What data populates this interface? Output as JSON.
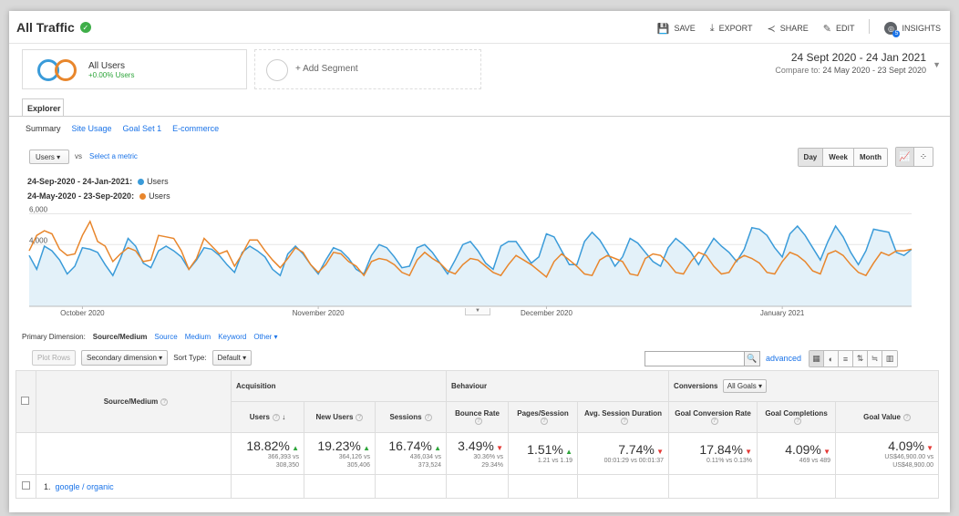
{
  "header": {
    "title": "All Traffic",
    "toolbar": {
      "save": "SAVE",
      "export": "EXPORT",
      "share": "SHARE",
      "edit": "EDIT",
      "insights": "INSIGHTS",
      "insights_badge": "5"
    }
  },
  "segments": {
    "primary": {
      "name": "All Users",
      "sub": "+0.00% Users"
    },
    "add": "+ Add Segment"
  },
  "date_range": {
    "main": "24 Sept 2020 - 24 Jan 2021",
    "compare_label": "Compare to:",
    "compare_value": "24 May 2020 - 23 Sept 2020"
  },
  "explorer": {
    "tab": "Explorer",
    "subtabs": [
      "Summary",
      "Site Usage",
      "Goal Set 1",
      "E-commerce"
    ]
  },
  "chart_controls": {
    "metric": "Users",
    "vs": "vs",
    "select_metric": "Select a metric",
    "granularity": [
      "Day",
      "Week",
      "Month"
    ],
    "active_granularity": "Day"
  },
  "legend": {
    "range1": "24-Sep-2020 - 24-Jan-2021:",
    "range2": "24-May-2020 - 23-Sep-2020:",
    "series": "Users"
  },
  "colors": {
    "current": "#3a9bd9",
    "previous": "#e8862c",
    "area": "#e3f1f9",
    "link": "#1a73e8",
    "up": "#2ea53b",
    "down": "#e53935"
  },
  "chart_data": {
    "type": "line",
    "y_ticks": [
      "6,000",
      "4,000",
      "2,000"
    ],
    "ylim": [
      0,
      6500
    ],
    "x_labels": [
      "October 2020",
      "November 2020",
      "December 2020",
      "January 2021"
    ],
    "x_label_index": [
      7,
      38,
      68,
      99
    ],
    "series": [
      {
        "name": "Users",
        "values": [
          3300,
          2400,
          3900,
          3600,
          3000,
          2100,
          2600,
          3800,
          3700,
          3500,
          2700,
          2000,
          3100,
          4400,
          3900,
          2800,
          2500,
          3600,
          3900,
          3600,
          3200,
          2400,
          3000,
          3800,
          3700,
          3300,
          2700,
          2200,
          3500,
          3900,
          3600,
          3200,
          2400,
          2000,
          3400,
          3900,
          3400,
          2700,
          2100,
          3000,
          3800,
          3600,
          3100,
          2400,
          2100,
          3300,
          4000,
          3800,
          3200,
          2500,
          2600,
          3800,
          4000,
          3500,
          2800,
          2100,
          3000,
          4000,
          4200,
          3600,
          2800,
          2400,
          3900,
          4200,
          4200,
          3500,
          2800,
          3200,
          4700,
          4500,
          3600,
          2700,
          2700,
          4200,
          4800,
          4300,
          3500,
          2600,
          3200,
          4400,
          4100,
          3500,
          2900,
          2600,
          3800,
          4400,
          4000,
          3500,
          2700,
          3600,
          4400,
          3900,
          3500,
          2900,
          3700,
          5100,
          5000,
          4600,
          3800,
          3200,
          4700,
          5200,
          4600,
          3800,
          3000,
          4200,
          5200,
          4500,
          3500,
          2700,
          3600,
          5000,
          4900,
          4800,
          3500,
          3300,
          3700
        ]
      },
      {
        "name": "Users",
        "values": [
          3600,
          4600,
          4900,
          4700,
          3700,
          3300,
          3400,
          4600,
          5500,
          4200,
          3900,
          2900,
          3400,
          3800,
          3600,
          2900,
          3000,
          4600,
          4500,
          4400,
          3600,
          2400,
          3100,
          4400,
          3900,
          3400,
          3600,
          2600,
          3400,
          4300,
          4300,
          3600,
          3000,
          2500,
          3100,
          3800,
          3500,
          2700,
          2200,
          2700,
          3500,
          3400,
          2900,
          2600,
          2000,
          2900,
          3100,
          3000,
          2700,
          2200,
          2000,
          3000,
          3500,
          3100,
          2800,
          2300,
          2100,
          2700,
          3100,
          3000,
          2600,
          2200,
          2000,
          2700,
          3300,
          3000,
          2700,
          2300,
          1900,
          2900,
          3400,
          3000,
          2600,
          2100,
          2000,
          3000,
          3300,
          3100,
          2900,
          2100,
          2000,
          3100,
          3400,
          3300,
          2800,
          2200,
          2100,
          2900,
          3500,
          3300,
          2600,
          2100,
          2200,
          3000,
          3300,
          3100,
          2800,
          2200,
          2100,
          2900,
          3500,
          3300,
          2900,
          2300,
          2100,
          3400,
          3600,
          3300,
          2700,
          2200,
          2000,
          2800,
          3500,
          3300,
          3600,
          3600,
          3700
        ]
      }
    ]
  },
  "primary_dimension": {
    "label": "Primary Dimension:",
    "current": "Source/Medium",
    "options": [
      "Source",
      "Medium",
      "Keyword"
    ],
    "other": "Other"
  },
  "table_controls": {
    "plot_rows": "Plot Rows",
    "secondary": "Secondary dimension",
    "sort_label": "Sort Type:",
    "sort_value": "Default",
    "advanced": "advanced"
  },
  "table": {
    "dim_header": "Source/Medium",
    "groups": {
      "acquisition": "Acquisition",
      "behaviour": "Behaviour",
      "conversions": "Conversions",
      "goals_select": "All Goals"
    },
    "columns": [
      "Users",
      "New Users",
      "Sessions",
      "Bounce Rate",
      "Pages/Session",
      "Avg. Session Duration",
      "Goal Conversion Rate",
      "Goal Completions",
      "Goal Value"
    ],
    "totals": [
      {
        "pct": "18.82%",
        "dir": "up",
        "line1": "366,393 vs",
        "line2": "308,350"
      },
      {
        "pct": "19.23%",
        "dir": "up",
        "line1": "364,126 vs",
        "line2": "305,406"
      },
      {
        "pct": "16.74%",
        "dir": "up",
        "line1": "436,034 vs",
        "line2": "373,524"
      },
      {
        "pct": "3.49%",
        "dir": "down",
        "line1": "30.36% vs",
        "line2": "29.34%"
      },
      {
        "pct": "1.51%",
        "dir": "up",
        "line1": "1.21 vs 1.19",
        "line2": ""
      },
      {
        "pct": "7.74%",
        "dir": "down",
        "line1": "00:01:29 vs 00:01:37",
        "line2": ""
      },
      {
        "pct": "17.84%",
        "dir": "down",
        "line1": "0.11% vs 0.13%",
        "line2": ""
      },
      {
        "pct": "4.09%",
        "dir": "down",
        "line1": "469 vs 489",
        "line2": ""
      },
      {
        "pct": "4.09%",
        "dir": "down",
        "line1": "US$46,900.00 vs",
        "line2": "US$48,900.00"
      }
    ],
    "rows": [
      {
        "index": "1.",
        "source": "google / organic"
      }
    ]
  }
}
